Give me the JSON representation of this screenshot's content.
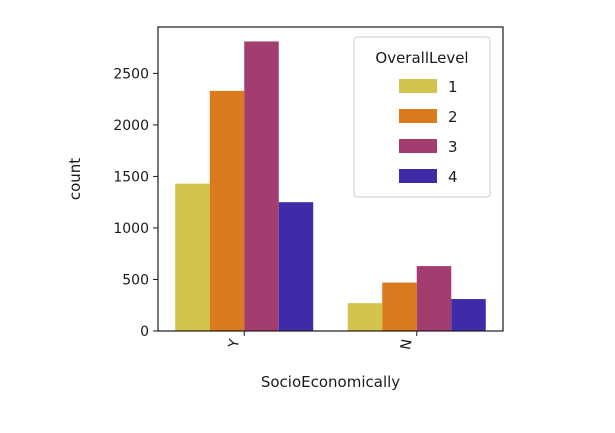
{
  "chart_data": {
    "type": "bar",
    "categories": [
      "Y",
      "N"
    ],
    "series": [
      {
        "name": "1",
        "color": "#d4c24f",
        "values": [
          1430,
          270
        ]
      },
      {
        "name": "2",
        "color": "#d97a1e",
        "values": [
          2330,
          470
        ]
      },
      {
        "name": "3",
        "color": "#a33d6f",
        "values": [
          2810,
          630
        ]
      },
      {
        "name": "4",
        "color": "#3d2ba8",
        "values": [
          1250,
          310
        ]
      }
    ],
    "xlabel": "SocioEconomically",
    "ylabel": "count",
    "ylim": [
      0,
      2950
    ],
    "yticks": [
      0,
      500,
      1000,
      1500,
      2000,
      2500
    ],
    "legend": {
      "title": "OverallLevel",
      "placement": "top-right"
    },
    "grid": false
  }
}
